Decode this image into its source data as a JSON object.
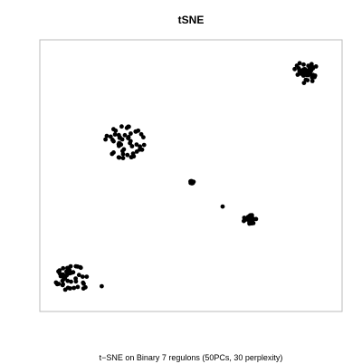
{
  "chart_data": {
    "type": "scatter",
    "title": "tSNE",
    "caption": "t−SNE on Binary 7 regulons (50PCs, 30 perplexity)",
    "xlabel": "",
    "ylabel": "",
    "xlim": [
      0,
      100
    ],
    "ylim": [
      0,
      100
    ],
    "grid": false,
    "axes_ticks": false,
    "point_color": "#000000",
    "frame_color": "#bbbbbb",
    "clusters": [
      {
        "center": [
          90.0,
          90.0
        ],
        "spread": [
          4.2,
          4.4
        ],
        "count": 38
      },
      {
        "center": [
          27.0,
          63.0
        ],
        "spread": [
          6.8,
          6.2
        ],
        "count": 52
      },
      {
        "center": [
          50.5,
          47.5
        ],
        "spread": [
          0.7,
          0.7
        ],
        "count": 12
      },
      {
        "center": [
          70.5,
          33.0
        ],
        "spread": [
          2.3,
          1.7
        ],
        "count": 26
      },
      {
        "center": [
          9.0,
          10.0
        ],
        "spread": [
          6.2,
          4.8
        ],
        "count": 46
      }
    ],
    "outliers": [
      [
        61.0,
        38.0
      ],
      [
        19.0,
        7.0
      ]
    ]
  }
}
